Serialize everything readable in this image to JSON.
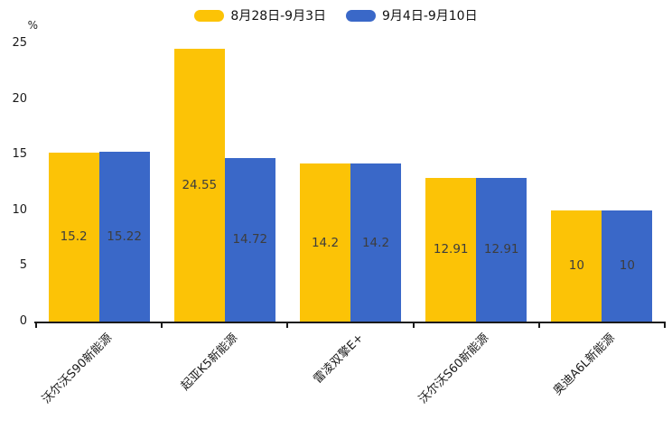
{
  "chart_data": {
    "type": "bar",
    "title": "",
    "ylabel": "%",
    "categories": [
      "沃尔沃S90新能源",
      "起亚K5新能源",
      "雷凌双擎E+",
      "沃尔沃S60新能源",
      "奥迪A6L新能源"
    ],
    "series": [
      {
        "name": "8月28日-9月3日",
        "color": "#FCC306",
        "values": [
          15.2,
          24.55,
          14.2,
          12.91,
          10
        ]
      },
      {
        "name": "9月4日-9月10日",
        "color": "#3A68C8",
        "values": [
          15.22,
          14.72,
          14.2,
          12.91,
          10
        ]
      }
    ],
    "ylim": [
      0,
      25
    ],
    "yticks": [
      0,
      5,
      10,
      15,
      20,
      25
    ],
    "grid": false,
    "legend_position": "top",
    "value_labels": "inside-center",
    "bar_label_color": "#3d3d3d",
    "axis_color": "#1a1a1a"
  }
}
